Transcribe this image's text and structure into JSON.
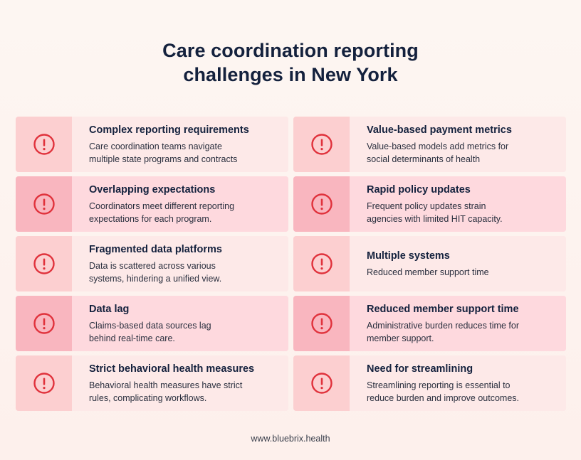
{
  "title_lines": [
    "Care coordination reporting",
    "challenges in New York"
  ],
  "icon": "alert-circle-icon",
  "colors": {
    "accent": "#e0323c",
    "title": "#14213d"
  },
  "cards": [
    {
      "title": "Complex reporting requirements",
      "lines": [
        "Care coordination teams navigate",
        "multiple state programs and contracts"
      ]
    },
    {
      "title": "Value-based payment metrics",
      "lines": [
        "Value-based models add metrics for",
        "social determinants of health"
      ]
    },
    {
      "title": "Overlapping expectations",
      "lines": [
        "Coordinators meet different reporting",
        "expectations for each program."
      ]
    },
    {
      "title": "Rapid policy updates",
      "lines": [
        "Frequent policy updates strain",
        "agencies with limited HIT capacity."
      ]
    },
    {
      "title": "Fragmented data platforms",
      "lines": [
        "Data is scattered across various",
        "systems, hindering a unified view."
      ]
    },
    {
      "title": "Multiple systems",
      "lines": [
        "Reduced member support time"
      ]
    },
    {
      "title": "Data lag",
      "lines": [
        "Claims-based data sources lag",
        "behind real-time care."
      ]
    },
    {
      "title": "Reduced member support time",
      "lines": [
        "Administrative burden reduces time for",
        "member support."
      ]
    },
    {
      "title": "Strict behavioral health measures",
      "lines": [
        "Behavioral health measures have strict",
        "rules, complicating workflows."
      ]
    },
    {
      "title": "Need for streamlining",
      "lines": [
        "Streamlining reporting is essential to",
        "reduce burden and improve outcomes."
      ]
    }
  ],
  "footer": "www.bluebrix.health"
}
